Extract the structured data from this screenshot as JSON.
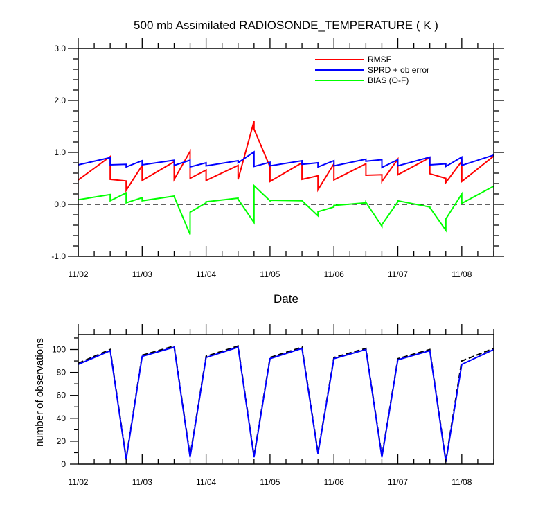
{
  "chart_data": [
    {
      "type": "line",
      "title": "500 mb Assimilated RADIOSONDE_TEMPERATURE ( K )",
      "xlabel": "Date",
      "ylabel": "",
      "xlim": [
        0,
        6.5
      ],
      "ylim": [
        -1.0,
        3.0
      ],
      "x_tick_values": [
        0,
        1,
        2,
        3,
        4,
        5,
        6
      ],
      "x_tick_labels": [
        "11/02",
        "11/03",
        "11/04",
        "11/05",
        "11/06",
        "11/07",
        "11/08"
      ],
      "y_tick_values": [
        -1.0,
        0.0,
        1.0,
        2.0,
        3.0
      ],
      "y_tick_labels": [
        "-1.0",
        "0.0",
        "1.0",
        "2.0",
        "3.0"
      ],
      "legend_position": "top-right",
      "reference_line": {
        "y": 0,
        "style": "dashed"
      },
      "series": [
        {
          "name": "RMSE",
          "color": "#ff0000",
          "x": [
            0,
            0.5,
            0.5,
            0.75,
            0.75,
            1,
            1,
            1.5,
            1.5,
            1.75,
            1.75,
            2,
            2,
            2.5,
            2.5,
            2.75,
            2.75,
            3,
            3,
            3.5,
            3.5,
            3.75,
            3.75,
            4,
            4,
            4.5,
            4.5,
            4.75,
            4.75,
            5,
            5,
            5.5,
            5.5,
            5.75,
            5.75,
            6,
            6,
            6.5
          ],
          "y": [
            0.47,
            0.92,
            0.48,
            0.45,
            0.27,
            0.75,
            0.46,
            0.82,
            0.48,
            1.02,
            0.5,
            0.66,
            0.46,
            0.75,
            0.48,
            1.6,
            1.45,
            0.72,
            0.44,
            0.8,
            0.48,
            0.55,
            0.28,
            0.78,
            0.47,
            0.78,
            0.56,
            0.57,
            0.44,
            0.87,
            0.57,
            0.9,
            0.59,
            0.5,
            0.42,
            0.83,
            0.44,
            0.93
          ]
        },
        {
          "name": "SPRD + ob error",
          "color": "#0000ff",
          "x": [
            0,
            0.5,
            0.5,
            0.75,
            0.75,
            1,
            1,
            1.5,
            1.5,
            1.75,
            1.75,
            2,
            2,
            2.5,
            2.5,
            2.75,
            2.75,
            3,
            3,
            3.5,
            3.5,
            3.75,
            3.75,
            4,
            4,
            4.5,
            4.5,
            4.75,
            4.75,
            5,
            5,
            5.5,
            5.5,
            5.75,
            5.75,
            6,
            6,
            6.5
          ],
          "y": [
            0.76,
            0.9,
            0.76,
            0.77,
            0.72,
            0.84,
            0.76,
            0.85,
            0.75,
            0.85,
            0.72,
            0.8,
            0.74,
            0.84,
            0.8,
            1.01,
            0.73,
            0.81,
            0.74,
            0.84,
            0.77,
            0.8,
            0.72,
            0.84,
            0.74,
            0.87,
            0.83,
            0.86,
            0.71,
            0.86,
            0.74,
            0.91,
            0.76,
            0.78,
            0.73,
            0.91,
            0.75,
            0.95
          ]
        },
        {
          "name": "BIAS (O-F)",
          "color": "#00ff00",
          "x": [
            0,
            0.5,
            0.5,
            0.75,
            0.75,
            1,
            1,
            1.5,
            1.5,
            1.75,
            1.75,
            2,
            2,
            2.5,
            2.5,
            2.75,
            2.75,
            3,
            3,
            3.5,
            3.5,
            3.75,
            3.75,
            4,
            4,
            4.5,
            4.5,
            4.75,
            4.75,
            5,
            5,
            5.5,
            5.5,
            5.75,
            5.75,
            6,
            6,
            6.5
          ],
          "y": [
            0.09,
            0.19,
            0.07,
            0.22,
            0.03,
            0.13,
            0.07,
            0.16,
            0.15,
            -0.58,
            -0.15,
            0.03,
            0.05,
            0.12,
            0.1,
            -0.35,
            0.36,
            0.07,
            0.08,
            0.07,
            0.07,
            -0.22,
            -0.14,
            -0.05,
            -0.02,
            0.03,
            0.04,
            -0.42,
            -0.39,
            0.05,
            0.07,
            -0.05,
            -0.06,
            -0.5,
            -0.28,
            0.2,
            0.02,
            0.35
          ]
        }
      ]
    },
    {
      "type": "line",
      "title": "",
      "xlabel": "",
      "ylabel": "number of observations",
      "xlim": [
        0,
        6.5
      ],
      "ylim": [
        0,
        113
      ],
      "x_tick_values": [
        0,
        1,
        2,
        3,
        4,
        5,
        6
      ],
      "x_tick_labels": [
        "11/02",
        "11/03",
        "11/04",
        "11/05",
        "11/06",
        "11/07",
        "11/08"
      ],
      "y_tick_values": [
        0,
        20,
        40,
        60,
        80,
        100
      ],
      "y_tick_labels": [
        "0",
        "20",
        "40",
        "60",
        "80",
        "100"
      ],
      "series": [
        {
          "name": "",
          "color": "#000000",
          "style": "dashed",
          "x": [
            0,
            0.5,
            0.75,
            1,
            1.5,
            1.75,
            2,
            2.5,
            2.75,
            3,
            3.5,
            3.75,
            4,
            4.5,
            4.75,
            5,
            5.5,
            5.75,
            6,
            6.5
          ],
          "y": [
            88,
            100,
            5,
            95,
            103,
            7,
            94,
            103,
            7,
            93,
            102,
            10,
            93,
            101,
            7,
            92,
            100,
            3,
            90,
            101
          ]
        },
        {
          "name": "",
          "color": "#0000ff",
          "style": "solid",
          "x": [
            0,
            0.5,
            0.75,
            1,
            1.5,
            1.75,
            2,
            2.5,
            2.75,
            3,
            3.5,
            3.75,
            4,
            4.5,
            4.75,
            5,
            5.5,
            5.75,
            6,
            6.5
          ],
          "y": [
            87,
            99,
            4,
            94,
            102,
            6,
            93,
            102,
            6,
            92,
            101,
            9,
            92,
            100,
            6,
            91,
            99,
            2,
            87,
            100
          ]
        }
      ]
    }
  ]
}
